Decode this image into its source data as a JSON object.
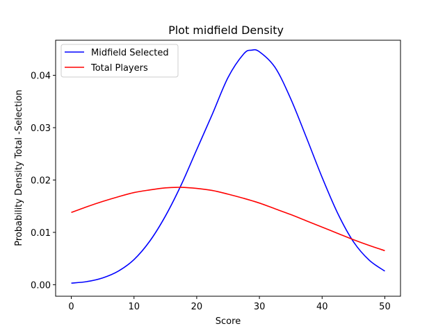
{
  "chart_data": {
    "type": "line",
    "title": "Plot midfield Density",
    "xlabel": "Score",
    "ylabel": "Probability Density Total -Selection",
    "xlim": [
      -2.5,
      52.5
    ],
    "ylim": [
      -0.0022,
      0.0467
    ],
    "xticks": [
      0,
      10,
      20,
      30,
      40,
      50
    ],
    "xtick_labels": [
      "0",
      "10",
      "20",
      "30",
      "40",
      "50"
    ],
    "yticks": [
      0.0,
      0.01,
      0.02,
      0.03,
      0.04
    ],
    "ytick_labels": [
      "0.00",
      "0.01",
      "0.02",
      "0.03",
      "0.04"
    ],
    "grid": false,
    "legend_position": "top-left",
    "series": [
      {
        "name": "Midfield Selected",
        "color": "#0000ff",
        "x": [
          0,
          2.5,
          5,
          7.5,
          10,
          12.5,
          15,
          17.5,
          20,
          22.5,
          25,
          27.5,
          28.75,
          30,
          32.5,
          35,
          37.5,
          40,
          42.5,
          45,
          47.5,
          50
        ],
        "y": [
          0.0003,
          0.0006,
          0.0013,
          0.0026,
          0.0048,
          0.0083,
          0.0131,
          0.019,
          0.0258,
          0.0326,
          0.0396,
          0.0441,
          0.0448,
          0.0445,
          0.0415,
          0.0355,
          0.0281,
          0.0205,
          0.0136,
          0.0082,
          0.0047,
          0.0026
        ]
      },
      {
        "name": "Total Players",
        "color": "#ff0000",
        "x": [
          0,
          2.5,
          5,
          7.5,
          10,
          12.5,
          15,
          17.5,
          20,
          22.5,
          25,
          27.5,
          30,
          32.5,
          35,
          37.5,
          40,
          42.5,
          45,
          47.5,
          50
        ],
        "y": [
          0.0138,
          0.0149,
          0.0159,
          0.0168,
          0.0176,
          0.0181,
          0.0185,
          0.0186,
          0.0184,
          0.018,
          0.0173,
          0.0165,
          0.0156,
          0.0145,
          0.0134,
          0.0122,
          0.011,
          0.0098,
          0.0086,
          0.0075,
          0.0065
        ]
      }
    ]
  }
}
